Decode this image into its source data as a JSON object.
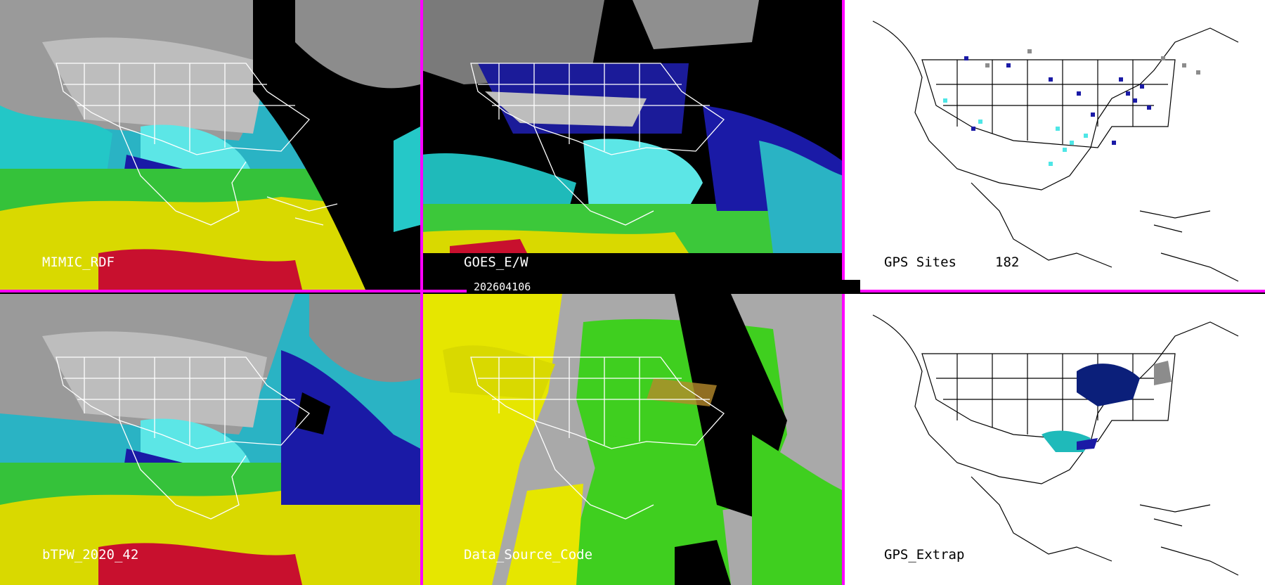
{
  "panels": {
    "mimic": {
      "label": "MIMIC_RDF"
    },
    "goes": {
      "label": "GOES_E/W"
    },
    "gps_sites": {
      "label": "GPS Sites",
      "count": "182"
    },
    "btpw": {
      "label": "bTPW_2020_42"
    },
    "data_source": {
      "label": "Data_Source_Code"
    },
    "gps_extrap": {
      "label": "GPS_Extrap"
    }
  },
  "timestamp": "202604106",
  "colors": {
    "separator": "#ff00ff",
    "red": "#c8102e",
    "yellow": "#e6e600",
    "green": "#3fcf1f",
    "cyan": "#4ee6e6",
    "blue": "#1a1aa6",
    "gray": "#a9a9a9",
    "navy": "#0b1f7a"
  }
}
